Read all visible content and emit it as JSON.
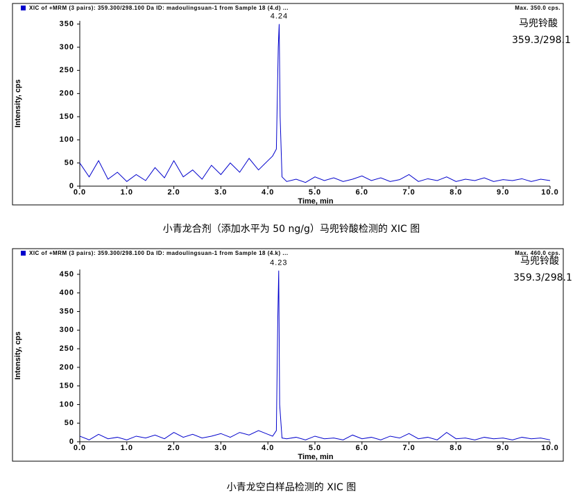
{
  "chart_data": [
    {
      "type": "line",
      "header": "XIC of +MRM (3 pairs): 359.300/298.100 Da ID: madoulingsuan-1 from Sample 18 (4.d) ...",
      "max_label": "Max. 350.0 cps.",
      "annotations": [
        "马兜铃酸",
        "359.3/298.1"
      ],
      "peak_label": "4.24",
      "x_label": "Time, min",
      "y_label": "Intensity, cps",
      "caption": "小青龙合剂（添加水平为 50 ng/g）马兜铃酸检测的 XIC 图",
      "color": "#0000cc",
      "xlim": [
        0,
        10
      ],
      "xticks": [
        {
          "value": 0,
          "label": "0.0"
        },
        {
          "value": 1,
          "label": "1.0"
        },
        {
          "value": 2,
          "label": "2.0"
        },
        {
          "value": 3,
          "label": "3.0"
        },
        {
          "value": 4,
          "label": "4.0"
        },
        {
          "value": 5,
          "label": "5.0"
        },
        {
          "value": 6,
          "label": "6.0"
        },
        {
          "value": 7,
          "label": "7.0"
        },
        {
          "value": 8,
          "label": "8.0"
        },
        {
          "value": 9,
          "label": "9.0"
        },
        {
          "value": 10,
          "label": "10.0"
        }
      ],
      "ylim": [
        0,
        357
      ],
      "yticks": [
        0,
        50,
        100,
        150,
        200,
        250,
        300,
        350
      ],
      "x": [
        0,
        0.2,
        0.4,
        0.6,
        0.8,
        1.0,
        1.2,
        1.4,
        1.6,
        1.8,
        2.0,
        2.2,
        2.4,
        2.6,
        2.8,
        3.0,
        3.2,
        3.4,
        3.6,
        3.8,
        4.0,
        4.1,
        4.18,
        4.22,
        4.24,
        4.26,
        4.3,
        4.4,
        4.6,
        4.8,
        5.0,
        5.2,
        5.4,
        5.6,
        5.8,
        6.0,
        6.2,
        6.4,
        6.6,
        6.8,
        7.0,
        7.2,
        7.4,
        7.6,
        7.8,
        8.0,
        8.2,
        8.4,
        8.6,
        8.8,
        9.0,
        9.2,
        9.4,
        9.6,
        9.8,
        10.0
      ],
      "values": [
        50,
        20,
        55,
        15,
        30,
        10,
        25,
        12,
        40,
        18,
        55,
        20,
        35,
        15,
        45,
        25,
        50,
        30,
        60,
        35,
        55,
        65,
        80,
        300,
        350,
        150,
        20,
        10,
        15,
        8,
        20,
        12,
        18,
        10,
        15,
        22,
        12,
        18,
        10,
        14,
        25,
        10,
        16,
        12,
        20,
        10,
        15,
        12,
        18,
        10,
        14,
        12,
        16,
        10,
        15,
        12
      ]
    },
    {
      "type": "line",
      "header": "XIC of +MRM (3 pairs): 359.300/298.100 Da ID: madoulingsuan-1 from Sample 18 (4.k) ...",
      "max_label": "Max. 460.0 cps.",
      "annotations": [
        "马兜铃酸",
        "359.3/298.1"
      ],
      "peak_label": "4.23",
      "x_label": "Time, min",
      "y_label": "Intensity, cps",
      "caption": "小青龙空白样品检测的 XIC 图",
      "color": "#0000cc",
      "xlim": [
        0,
        10
      ],
      "xticks": [
        {
          "value": 0,
          "label": "0.0"
        },
        {
          "value": 1,
          "label": "1.0"
        },
        {
          "value": 2,
          "label": "2.0"
        },
        {
          "value": 3,
          "label": "3.0"
        },
        {
          "value": 4,
          "label": "4.0"
        },
        {
          "value": 5,
          "label": "5.0"
        },
        {
          "value": 6,
          "label": "6.0"
        },
        {
          "value": 7,
          "label": "7.0"
        },
        {
          "value": 8,
          "label": "8.0"
        },
        {
          "value": 9,
          "label": "9.0"
        },
        {
          "value": 10,
          "label": "10.0"
        }
      ],
      "ylim": [
        0,
        463
      ],
      "yticks": [
        0,
        50,
        100,
        150,
        200,
        250,
        300,
        350,
        400,
        450
      ],
      "x": [
        0,
        0.2,
        0.4,
        0.6,
        0.8,
        1.0,
        1.2,
        1.4,
        1.6,
        1.8,
        2.0,
        2.2,
        2.4,
        2.6,
        2.8,
        3.0,
        3.2,
        3.4,
        3.6,
        3.8,
        4.0,
        4.1,
        4.18,
        4.21,
        4.23,
        4.25,
        4.3,
        4.4,
        4.6,
        4.8,
        5.0,
        5.2,
        5.4,
        5.6,
        5.8,
        6.0,
        6.2,
        6.4,
        6.6,
        6.8,
        7.0,
        7.2,
        7.4,
        7.6,
        7.8,
        8.0,
        8.2,
        8.4,
        8.6,
        8.8,
        9.0,
        9.2,
        9.4,
        9.6,
        9.8,
        10.0
      ],
      "values": [
        15,
        5,
        20,
        8,
        12,
        5,
        15,
        10,
        18,
        8,
        25,
        12,
        20,
        10,
        15,
        22,
        12,
        25,
        18,
        30,
        20,
        15,
        30,
        330,
        460,
        100,
        10,
        8,
        12,
        5,
        15,
        8,
        10,
        5,
        18,
        8,
        12,
        5,
        15,
        10,
        22,
        8,
        12,
        5,
        25,
        8,
        10,
        5,
        12,
        8,
        10,
        5,
        12,
        8,
        10,
        5
      ]
    }
  ]
}
